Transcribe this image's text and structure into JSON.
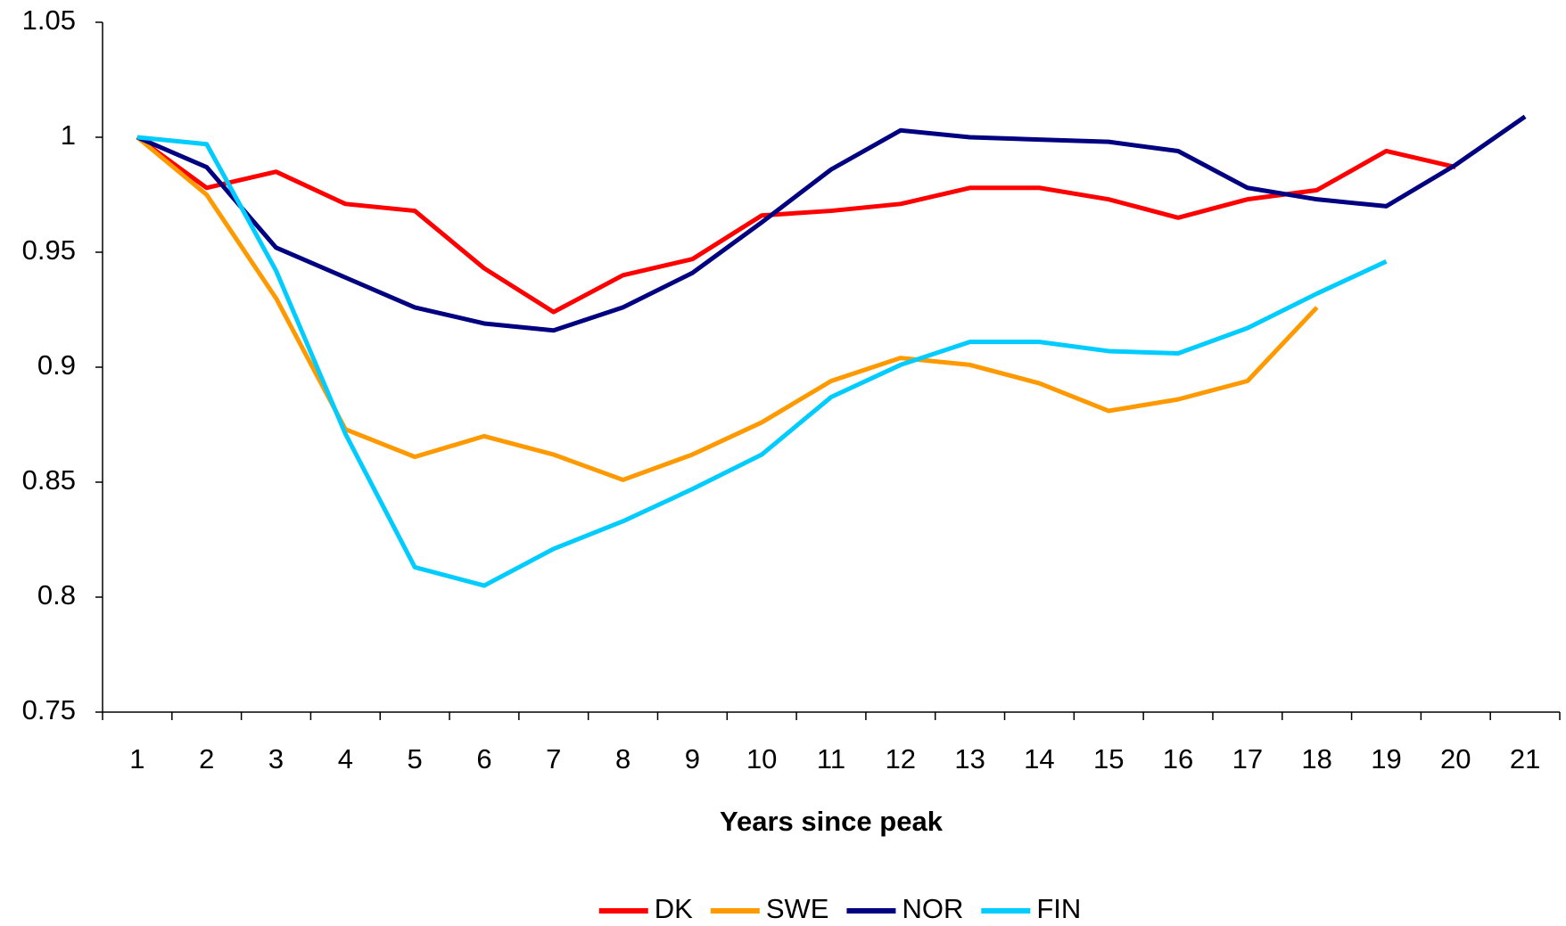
{
  "chart_data": {
    "type": "line",
    "x_label": "Years since peak",
    "categories": [
      1,
      2,
      3,
      4,
      5,
      6,
      7,
      8,
      9,
      10,
      11,
      12,
      13,
      14,
      15,
      16,
      17,
      18,
      19,
      20,
      21
    ],
    "series": [
      {
        "name": "DK",
        "color": "#ff0000",
        "values": [
          1,
          0.978,
          0.985,
          0.971,
          0.968,
          0.943,
          0.924,
          0.94,
          0.947,
          0.966,
          0.968,
          0.971,
          0.978,
          0.978,
          0.973,
          0.965,
          0.973,
          0.977,
          0.994,
          0.987,
          null
        ]
      },
      {
        "name": "SWE",
        "color": "#ff9900",
        "values": [
          1,
          0.975,
          0.93,
          0.873,
          0.861,
          0.87,
          0.862,
          0.851,
          0.862,
          0.876,
          0.894,
          0.904,
          0.901,
          0.893,
          0.881,
          0.886,
          0.894,
          0.926,
          null,
          null,
          null
        ]
      },
      {
        "name": "NOR",
        "color": "#000080",
        "values": [
          1,
          0.987,
          0.952,
          0.939,
          0.926,
          0.919,
          0.916,
          0.926,
          0.941,
          0.963,
          0.986,
          1.003,
          1.0,
          0.999,
          0.998,
          0.994,
          0.978,
          0.973,
          0.97,
          0.988,
          1.009
        ]
      },
      {
        "name": "FIN",
        "color": "#00ccff",
        "values": [
          1,
          0.997,
          0.942,
          0.871,
          0.813,
          0.805,
          0.821,
          0.833,
          0.847,
          0.862,
          0.887,
          0.901,
          0.911,
          0.911,
          0.907,
          0.906,
          0.917,
          0.932,
          0.946,
          null,
          null
        ]
      }
    ],
    "ylim": [
      0.75,
      1.05
    ],
    "yticks": [
      0.75,
      0.8,
      0.85,
      0.9,
      0.95,
      1,
      1.05
    ],
    "grid": false,
    "legend": "bottom"
  }
}
